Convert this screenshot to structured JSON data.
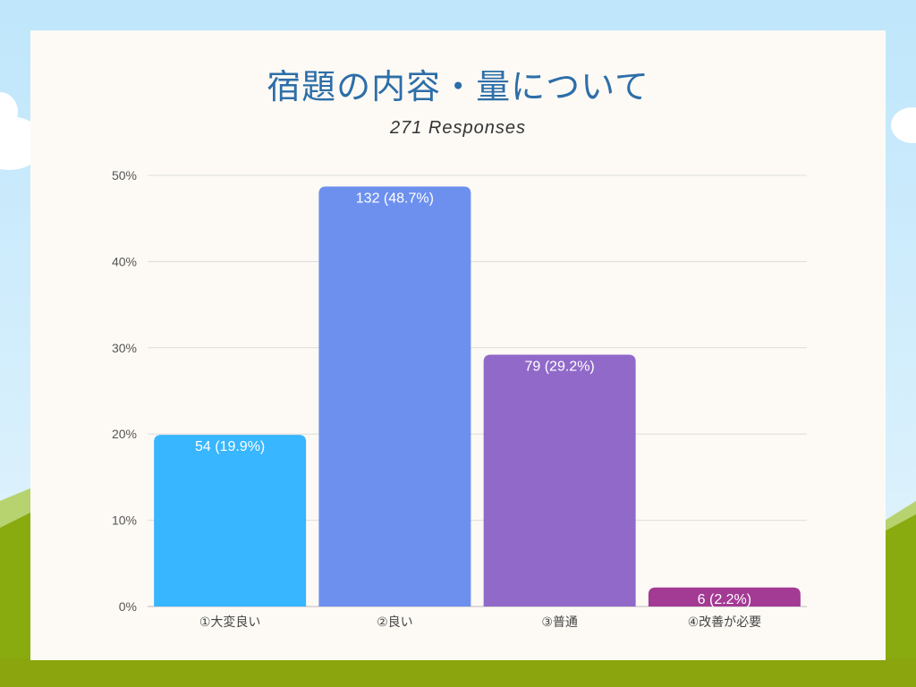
{
  "chart_data": {
    "type": "bar",
    "title": "宿題の内容・量について",
    "subtitle": "271 Responses",
    "categories": [
      "①大変良い",
      "②良い",
      "③普通",
      "④改善が必要"
    ],
    "values": [
      19.9,
      48.7,
      29.2,
      2.2
    ],
    "data_labels": [
      "54 (19.9%)",
      "132 (48.7%)",
      "79 (29.2%)",
      "6 (2.2%)"
    ],
    "colors": [
      "#38b6ff",
      "#6d90ef",
      "#9169c9",
      "#a33a94"
    ],
    "ylim": [
      0,
      50
    ],
    "yticks": [
      "0%",
      "10%",
      "20%",
      "30%",
      "40%",
      "50%"
    ],
    "grid": true,
    "xlabel": "",
    "ylabel": ""
  }
}
